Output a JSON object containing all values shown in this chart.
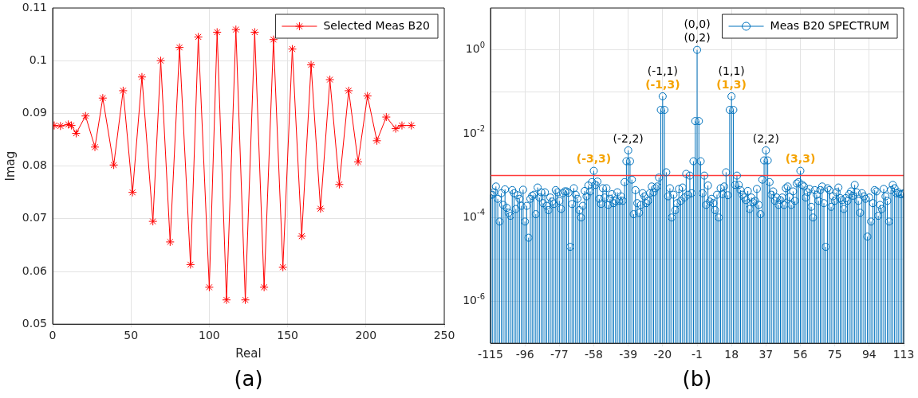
{
  "chart_data": [
    {
      "type": "line",
      "xlabel": "Real",
      "ylabel": "Imag",
      "annotations": [
        "(a)"
      ],
      "x": [
        1,
        5,
        10,
        12,
        15,
        21,
        27,
        32,
        39,
        45,
        51,
        57,
        64,
        69,
        75,
        81,
        88,
        93,
        100,
        105,
        111,
        117,
        123,
        129,
        135,
        141,
        147,
        153,
        159,
        165,
        171,
        177,
        183,
        189,
        195,
        201,
        207,
        213,
        219,
        223,
        229
      ],
      "series": [
        {
          "name": "Selected Meas B20",
          "color": "#ff0000",
          "values": [
            0.0877,
            0.0876,
            0.0879,
            0.0877,
            0.0862,
            0.0895,
            0.0836,
            0.0929,
            0.0802,
            0.0943,
            0.075,
            0.0969,
            0.0695,
            0.1,
            0.0656,
            0.1025,
            0.0613,
            0.1045,
            0.057,
            0.1054,
            0.0546,
            0.1059,
            0.0546,
            0.1054,
            0.057,
            0.104,
            0.0608,
            0.1022,
            0.0667,
            0.0992,
            0.0719,
            0.0964,
            0.0765,
            0.0943,
            0.0808,
            0.0933,
            0.0848,
            0.0893,
            0.0871,
            0.0877,
            0.0877
          ]
        }
      ],
      "xlim": [
        0,
        250
      ],
      "xticks": [
        0,
        50,
        100,
        150,
        200,
        250
      ],
      "ylim": [
        0.05,
        0.11
      ],
      "yticks": [
        0.05,
        0.06,
        0.07,
        0.08,
        0.09,
        0.1,
        0.11
      ],
      "grid": true,
      "legend": "top right",
      "marker": "cross"
    },
    {
      "type": "lollipop",
      "annotations": [
        {
          "text": "(0,0)",
          "x": -1,
          "y": 1
        },
        {
          "text": "(0,2)",
          "x": -1,
          "y": 1
        },
        {
          "text": "(-1,1)",
          "x": -20,
          "y": 0.078
        },
        {
          "text": "(1,1)",
          "x": 18,
          "y": 0.078
        },
        {
          "text": "(-2,2)",
          "x": -39,
          "y": 0.004
        },
        {
          "text": "(2,2)",
          "x": 37,
          "y": 0.004
        },
        {
          "text": "(-3,3)",
          "x": -58,
          "y": 0.0013
        },
        {
          "text": "(-1,3)",
          "x": -20,
          "y": 0.078
        },
        {
          "text": "(1,3)",
          "x": 18,
          "y": 0.078
        },
        {
          "text": "(3,3)",
          "x": 56,
          "y": 0.0013
        },
        "(b)"
      ],
      "x": [
        -115,
        -114,
        -113,
        -112,
        -111,
        -110,
        -109,
        -108,
        -107,
        -106,
        -105,
        -104,
        -103,
        -102,
        -101,
        -100,
        -99,
        -98,
        -97,
        -96,
        -95,
        -94,
        -93,
        -92,
        -91,
        -90,
        -89,
        -88,
        -87,
        -86,
        -85,
        -84,
        -83,
        -82,
        -81,
        -80,
        -79,
        -78,
        -77,
        -76,
        -75,
        -74,
        -73,
        -72,
        -71,
        -70,
        -69,
        -68,
        -67,
        -66,
        -65,
        -64,
        -63,
        -62,
        -61,
        -60,
        -59,
        -58,
        -57,
        -56,
        -55,
        -54,
        -53,
        -52,
        -51,
        -50,
        -49,
        -48,
        -47,
        -46,
        -45,
        -44,
        -43,
        -42,
        -41,
        -40,
        -39,
        -38,
        -37,
        -36,
        -35,
        -34,
        -33,
        -32,
        -31,
        -30,
        -29,
        -28,
        -27,
        -26,
        -25,
        -24,
        -23,
        -22,
        -21,
        -20,
        -19,
        -18,
        -17,
        -16,
        -15,
        -14,
        -13,
        -12,
        -11,
        -10,
        -9,
        -8,
        -7,
        -6,
        -5,
        -4,
        -3,
        -2,
        -1,
        0,
        1,
        2,
        3,
        4,
        5,
        6,
        7,
        8,
        9,
        10,
        11,
        12,
        13,
        14,
        15,
        16,
        17,
        18,
        19,
        20,
        21,
        22,
        23,
        24,
        25,
        26,
        27,
        28,
        29,
        30,
        31,
        32,
        33,
        34,
        35,
        36,
        37,
        38,
        39,
        40,
        41,
        42,
        43,
        44,
        45,
        46,
        47,
        48,
        49,
        50,
        51,
        52,
        53,
        54,
        55,
        56,
        57,
        58,
        59,
        60,
        61,
        62,
        63,
        64,
        65,
        66,
        67,
        68,
        69,
        70,
        71,
        72,
        73,
        74,
        75,
        76,
        77,
        78,
        79,
        80,
        81,
        82,
        83,
        84,
        85,
        86,
        87,
        88,
        89,
        90,
        91,
        92,
        93,
        94,
        95,
        96,
        97,
        98,
        99,
        100,
        101,
        102,
        103,
        104,
        105,
        106,
        107,
        108,
        109,
        110,
        111,
        112,
        113
      ],
      "series": [
        {
          "name": "Meas B20 SPECTRUM",
          "color": "#0072bd",
          "values": [
            0.00035,
            0.00035,
            0.0004,
            0.00055,
            0.00028,
            8e-05,
            0.00038,
            0.0002,
            0.00047,
            0.00017,
            0.00013,
            0.00011,
            0.00045,
            0.00038,
            0.00016,
            0.00034,
            0.00028,
            0.00019,
            0.00046,
            8e-05,
            0.00019,
            3.3e-05,
            0.00028,
            0.00033,
            0.00035,
            0.00012,
            0.00052,
            0.0003,
            0.0004,
            0.00022,
            0.0004,
            0.00019,
            0.00015,
            0.0003,
            0.00024,
            0.00021,
            0.00045,
            0.0004,
            0.00025,
            0.00016,
            0.00038,
            0.00042,
            0.00042,
            0.00039,
            2e-05,
            0.00021,
            0.0005,
            0.00035,
            0.00028,
            0.00015,
            0.0001,
            0.00019,
            0.00043,
            0.00032,
            0.00058,
            0.00042,
            0.0007,
            0.0013,
            0.0006,
            0.00072,
            0.00028,
            0.00021,
            0.0005,
            0.0003,
            0.0005,
            0.0002,
            0.00028,
            0.00036,
            0.00022,
            0.00025,
            0.0004,
            0.00025,
            0.00032,
            0.00025,
            0.0007,
            0.0022,
            0.004,
            0.0022,
            0.0008,
            0.00012,
            0.00045,
            0.00022,
            0.00013,
            0.0002,
            0.00038,
            0.00032,
            0.00022,
            0.00025,
            0.00038,
            0.00055,
            0.0004,
            0.0005,
            0.00055,
            0.0009,
            0.037,
            0.078,
            0.037,
            0.0012,
            0.00032,
            0.0005,
            0.0001,
            0.00035,
            0.00015,
            0.00022,
            0.00048,
            0.00025,
            0.00052,
            0.0003,
            0.0011,
            0.00035,
            0.001,
            0.00038,
            0.0022,
            0.02,
            1,
            0.02,
            0.0022,
            0.00038,
            0.001,
            0.0002,
            0.00058,
            0.00024,
            0.00028,
            0.00022,
            0.00015,
            0.00035,
            0.0001,
            0.0005,
            0.00036,
            0.00055,
            0.0012,
            0.00034,
            0.037,
            0.078,
            0.037,
            0.0006,
            0.001,
            0.0006,
            0.00045,
            0.00035,
            0.0003,
            0.00026,
            0.00043,
            0.00016,
            0.0003,
            0.00023,
            0.00025,
            0.00048,
            0.0002,
            0.00012,
            0.0008,
            0.0023,
            0.004,
            0.0023,
            0.0007,
            0.00035,
            0.00042,
            0.00025,
            0.0003,
            0.0002,
            0.00026,
            0.0003,
            0.0002,
            0.0005,
            0.00055,
            0.00031,
            0.0002,
            0.00042,
            0.00025,
            0.00065,
            0.0007,
            0.0013,
            0.0006,
            0.00055,
            0.0003,
            0.0004,
            0.00048,
            0.00018,
            0.0001,
            0.00045,
            0.00035,
            0.00025,
            0.00045,
            0.00055,
            0.00022,
            2e-05,
            0.0005,
            0.00045,
            0.00018,
            0.00032,
            0.00025,
            0.0004,
            0.00052,
            0.00029,
            0.00026,
            0.00016,
            0.00029,
            0.00025,
            0.00036,
            0.00042,
            0.00033,
            0.0006,
            0.0004,
            0.00025,
            0.00013,
            0.00038,
            0.00032,
            0.00028,
            3.5e-05,
            0.0003,
            8e-05,
            0.00022,
            0.00045,
            0.00042,
            0.00011,
            0.0002,
            0.00016,
            0.00048,
            0.00032,
            0.00025,
            8e-05,
            0.00045,
            0.0006,
            0.0005,
            0.00038,
            0.0004,
            0.00036,
            0.00036,
            0.00038
          ]
        }
      ],
      "xlim": [
        -115,
        113
      ],
      "xticks": [
        -115,
        -96,
        -77,
        -58,
        -39,
        -20,
        -1,
        18,
        37,
        56,
        75,
        94,
        113
      ],
      "ylim": [
        1e-07,
        10
      ],
      "yticks": [
        {
          "value": 1e-07,
          "label": null
        },
        {
          "value": 1e-06,
          "label": "10$^{-6}$"
        },
        {
          "value": 1e-05,
          "label": null
        },
        {
          "value": 0.0001,
          "label": "10$^{-4}$"
        },
        {
          "value": 0.001,
          "label": null
        },
        {
          "value": 0.01,
          "label": "10$^{-2}$"
        },
        {
          "value": 0.1,
          "label": null
        },
        {
          "value": 1,
          "label": "10$^{0}$"
        },
        {
          "value": 10,
          "label": null
        }
      ],
      "log": true,
      "grid": true,
      "legend": "top right",
      "marker": "circle",
      "ref_lines": [
        {
          "axis": "y",
          "value": 0.001,
          "color": "#ff3b3b"
        }
      ]
    }
  ]
}
